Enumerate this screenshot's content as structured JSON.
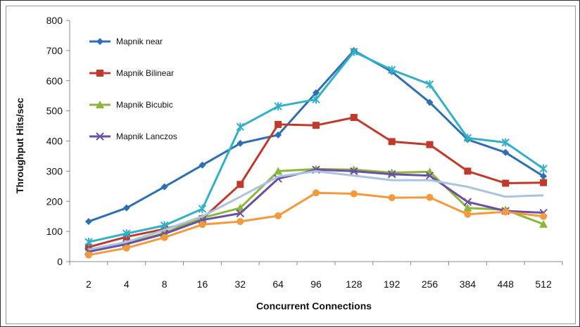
{
  "chart_data": {
    "type": "line",
    "title": "",
    "xlabel": "Concurrent Connections",
    "ylabel": "Throughput Hits/sec",
    "categories": [
      "2",
      "4",
      "8",
      "16",
      "32",
      "64",
      "96",
      "128",
      "192",
      "256",
      "384",
      "448",
      "512"
    ],
    "ylim": [
      0,
      800
    ],
    "yticks": [
      0,
      100,
      200,
      300,
      400,
      500,
      600,
      700,
      800
    ],
    "grid": false,
    "legend_position": "top-left",
    "series": [
      {
        "name": "Mapnik near",
        "color": "#2e6fb3",
        "marker": "diamond",
        "values": [
          133,
          178,
          248,
          320,
          392,
          420,
          560,
          700,
          630,
          528,
          405,
          362,
          283
        ]
      },
      {
        "name": "Mapnik Bilinear",
        "color": "#c0392b",
        "marker": "square",
        "values": [
          48,
          82,
          108,
          142,
          256,
          455,
          452,
          478,
          398,
          388,
          300,
          260,
          262
        ]
      },
      {
        "name": "Mapnik Bicubic",
        "color": "#8db63a",
        "marker": "triangle",
        "values": [
          35,
          60,
          95,
          145,
          178,
          300,
          307,
          305,
          295,
          298,
          178,
          172,
          124
        ]
      },
      {
        "name": "Mapnik Lanczos",
        "color": "#6a4fa3",
        "marker": "x",
        "values": [
          33,
          58,
          92,
          138,
          160,
          275,
          305,
          300,
          290,
          285,
          198,
          168,
          162
        ]
      },
      {
        "color": "#31b0c8",
        "marker": "star",
        "values": [
          65,
          93,
          120,
          175,
          447,
          515,
          538,
          696,
          636,
          588,
          410,
          395,
          308
        ]
      },
      {
        "color": "#f39a3c",
        "marker": "circle",
        "values": [
          22,
          45,
          80,
          123,
          133,
          152,
          228,
          225,
          212,
          213,
          157,
          165,
          150
        ]
      },
      {
        "color": "#a9c3e0",
        "marker": "none",
        "values": [
          40,
          65,
          105,
          150,
          215,
          282,
          300,
          285,
          270,
          270,
          248,
          215,
          220
        ]
      }
    ]
  }
}
